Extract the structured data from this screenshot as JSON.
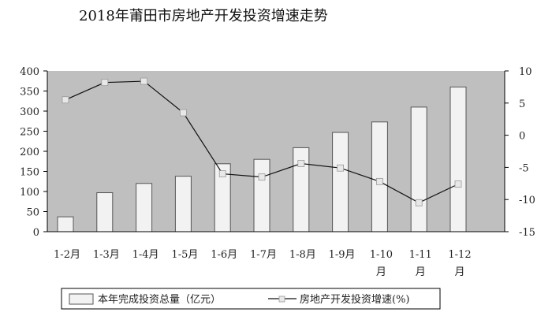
{
  "chart_data": {
    "type": "bar+line",
    "title": "2018年莆田市房地产开发投资增速走势",
    "categories": [
      [
        "1-2月"
      ],
      [
        "1-3月"
      ],
      [
        "1-4月"
      ],
      [
        "1-5月"
      ],
      [
        "1-6月"
      ],
      [
        "1-7月"
      ],
      [
        "1-8月"
      ],
      [
        "1-9月"
      ],
      [
        "1-10",
        "月"
      ],
      [
        "1-11",
        "月"
      ],
      [
        "1-12",
        "月"
      ]
    ],
    "series": [
      {
        "name": "本年完成投资总量（亿元）",
        "type": "bar",
        "axis": "left",
        "values": [
          37,
          97,
          120,
          138,
          169,
          180,
          209,
          247,
          273,
          310,
          360
        ]
      },
      {
        "name": "房地产开发投资增速(%)",
        "type": "line",
        "axis": "right",
        "values": [
          5.5,
          8.2,
          8.4,
          3.5,
          -6.0,
          -6.5,
          -4.4,
          -5.1,
          -7.2,
          -10.5,
          -7.6
        ]
      }
    ],
    "y_left": {
      "min": 0,
      "max": 400,
      "ticks": [
        0,
        50,
        100,
        150,
        200,
        250,
        300,
        350,
        400
      ]
    },
    "y_right": {
      "min": -15,
      "max": 10,
      "ticks": [
        -15,
        -10,
        -5,
        0,
        5,
        10
      ]
    },
    "grid": false,
    "legend": "bottom",
    "colors": {
      "plot_bg": "#bfbfbf",
      "bar_fill": "#f2f2f2",
      "bar_stroke": "#555555",
      "line": "#111111",
      "marker": "#e8e8e8"
    }
  }
}
